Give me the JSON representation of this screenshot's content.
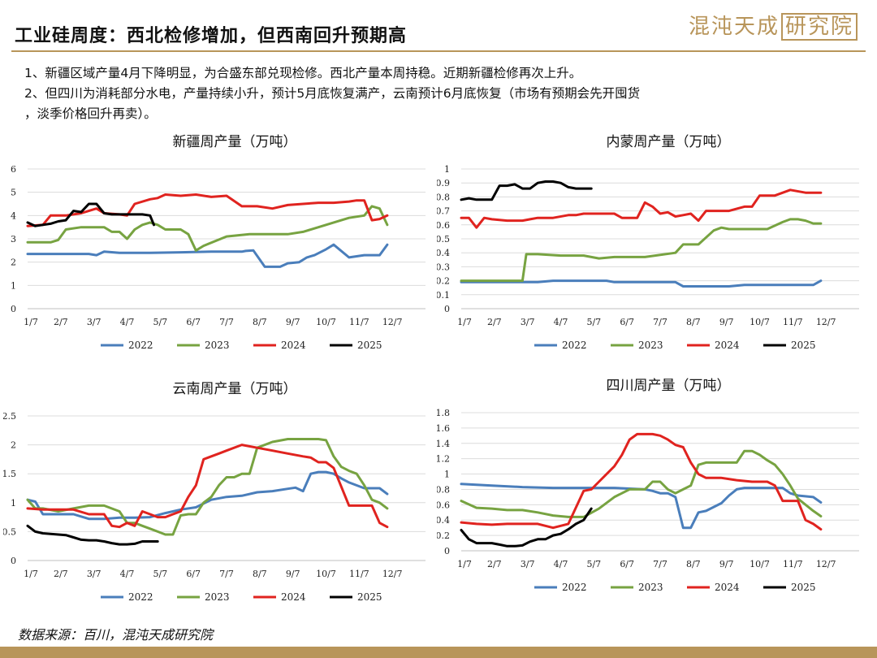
{
  "page": {
    "title": "工业硅周度：西北检修增加，但西南回升预期高",
    "brand_main": "混沌天成",
    "brand_box": "研究院",
    "notes": [
      "1、新疆区域产量4月下降明显，为合盛东部兑现检修。西北产量本周持稳。近期新疆检修再次上升。",
      "2、但四川为消耗部分水电，产量持续小升，预计5月底恢复满产，云南预计6月底恢复（市场有预期会先开囤货",
      "，淡季价格回升再卖）。"
    ],
    "source": "数据来源：百川，混沌天成研究院"
  },
  "colors": {
    "2022": "#4a7ebb",
    "2023": "#77a341",
    "2024": "#e0231f",
    "2025": "#000000",
    "accent": "#b8955a"
  },
  "chart_data": [
    {
      "id": "xinjiang",
      "type": "line",
      "title": "新疆周产量（万吨）",
      "ylim": [
        0,
        6
      ],
      "yticks": [
        "0",
        "1",
        "2",
        "3",
        "4",
        "5",
        "6"
      ],
      "xticks": [
        "1/7",
        "2/7",
        "3/7",
        "4/7",
        "5/7",
        "6/7",
        "7/7",
        "8/7",
        "9/7",
        "10/7",
        "11/7",
        "12/7"
      ],
      "xrange": [
        0,
        52
      ],
      "grid": true,
      "legend": "bottom",
      "series": [
        {
          "name": "2022",
          "x": [
            0,
            4,
            8,
            9,
            10,
            12,
            16,
            20,
            24,
            28,
            28.5,
            29.5,
            31,
            33,
            34,
            35.5,
            36.5,
            37.5,
            39,
            40,
            42,
            44,
            46,
            47
          ],
          "y": [
            2.35,
            2.35,
            2.35,
            2.3,
            2.45,
            2.4,
            2.4,
            2.42,
            2.45,
            2.45,
            2.48,
            2.5,
            1.8,
            1.8,
            1.95,
            2.0,
            2.2,
            2.3,
            2.55,
            2.75,
            2.2,
            2.3,
            2.3,
            2.75
          ]
        },
        {
          "name": "2023",
          "x": [
            0,
            3,
            4,
            5,
            7,
            10,
            11,
            12,
            13,
            14,
            15,
            16,
            17,
            18,
            19,
            20,
            21,
            22,
            23,
            26,
            29,
            31,
            34,
            36,
            38,
            40,
            42,
            44,
            45,
            46,
            47
          ],
          "y": [
            2.85,
            2.85,
            2.95,
            3.4,
            3.5,
            3.5,
            3.3,
            3.3,
            3.0,
            3.4,
            3.6,
            3.7,
            3.6,
            3.4,
            3.4,
            3.4,
            3.2,
            2.5,
            2.7,
            3.1,
            3.2,
            3.2,
            3.2,
            3.3,
            3.5,
            3.7,
            3.9,
            4.0,
            4.4,
            4.3,
            3.6
          ]
        },
        {
          "name": "2024",
          "x": [
            0,
            2,
            3,
            5,
            7,
            8,
            9,
            10,
            12,
            13,
            14,
            16,
            17,
            18,
            20,
            22,
            24,
            26,
            28,
            30,
            32,
            34,
            36,
            38,
            40,
            42,
            43,
            44,
            45,
            46,
            47
          ],
          "y": [
            3.55,
            3.6,
            4.0,
            4.0,
            4.1,
            4.2,
            4.3,
            4.1,
            4.05,
            4.0,
            4.5,
            4.7,
            4.75,
            4.9,
            4.85,
            4.9,
            4.8,
            4.85,
            4.4,
            4.4,
            4.3,
            4.45,
            4.5,
            4.55,
            4.55,
            4.6,
            4.65,
            4.65,
            3.8,
            3.85,
            4.0
          ]
        },
        {
          "name": "2025",
          "x": [
            0,
            1,
            2,
            3,
            4,
            5,
            6,
            7,
            8,
            9,
            10,
            11,
            12,
            13,
            14,
            15,
            16,
            16.5
          ],
          "y": [
            3.7,
            3.55,
            3.6,
            3.65,
            3.75,
            3.8,
            4.2,
            4.15,
            4.5,
            4.5,
            4.1,
            4.05,
            4.05,
            4.05,
            4.05,
            4.05,
            4.0,
            3.6
          ]
        }
      ]
    },
    {
      "id": "neimeng",
      "type": "line",
      "title": "内蒙周产量（万吨）",
      "ylim": [
        0,
        1
      ],
      "yticks": [
        "0",
        "0.1",
        "0.2",
        "0.3",
        "0.4",
        "0.5",
        "0.6",
        "0.7",
        "0.8",
        "0.9",
        "1"
      ],
      "xticks": [
        "1/7",
        "2/7",
        "3/7",
        "4/7",
        "5/7",
        "6/7",
        "7/7",
        "8/7",
        "9/7",
        "10/7",
        "11/7",
        "12/7"
      ],
      "xrange": [
        0,
        52
      ],
      "grid": true,
      "legend": "bottom",
      "series": [
        {
          "name": "2022",
          "x": [
            0,
            4,
            8,
            10,
            12,
            16,
            19,
            20,
            24,
            28,
            29,
            33,
            35,
            37,
            38,
            42,
            45,
            46,
            47
          ],
          "y": [
            0.19,
            0.19,
            0.19,
            0.19,
            0.2,
            0.2,
            0.2,
            0.19,
            0.19,
            0.19,
            0.16,
            0.16,
            0.16,
            0.17,
            0.17,
            0.17,
            0.17,
            0.17,
            0.2
          ]
        },
        {
          "name": "2023",
          "x": [
            0,
            4,
            8,
            8.5,
            10,
            13,
            16,
            18,
            20,
            24,
            28,
            29,
            31,
            33,
            34,
            35,
            38,
            40,
            42,
            43,
            44,
            45,
            46,
            47
          ],
          "y": [
            0.2,
            0.2,
            0.2,
            0.39,
            0.39,
            0.38,
            0.38,
            0.36,
            0.37,
            0.37,
            0.4,
            0.46,
            0.46,
            0.56,
            0.58,
            0.57,
            0.57,
            0.57,
            0.62,
            0.64,
            0.64,
            0.63,
            0.61,
            0.61
          ]
        },
        {
          "name": "2024",
          "x": [
            0,
            1,
            2,
            3,
            4,
            6,
            8,
            9,
            10,
            12,
            14,
            15,
            16,
            18,
            20,
            21,
            23,
            24,
            25,
            26,
            27,
            28,
            29,
            30,
            31,
            32,
            34,
            35,
            37,
            38,
            39,
            40,
            41,
            43,
            45,
            47
          ],
          "y": [
            0.65,
            0.65,
            0.58,
            0.65,
            0.64,
            0.63,
            0.63,
            0.64,
            0.65,
            0.65,
            0.67,
            0.67,
            0.68,
            0.68,
            0.68,
            0.65,
            0.65,
            0.76,
            0.73,
            0.68,
            0.69,
            0.66,
            0.67,
            0.68,
            0.63,
            0.7,
            0.7,
            0.7,
            0.73,
            0.73,
            0.81,
            0.81,
            0.81,
            0.85,
            0.83,
            0.83
          ]
        },
        {
          "name": "2025",
          "x": [
            0,
            1,
            2,
            3,
            4,
            5,
            6,
            7,
            8,
            9,
            10,
            11,
            12,
            13,
            14,
            15,
            16,
            17
          ],
          "y": [
            0.78,
            0.79,
            0.78,
            0.78,
            0.78,
            0.88,
            0.88,
            0.89,
            0.86,
            0.86,
            0.9,
            0.91,
            0.91,
            0.9,
            0.87,
            0.86,
            0.86,
            0.86
          ]
        }
      ]
    },
    {
      "id": "yunnan",
      "type": "line",
      "title": "云南周产量（万吨）",
      "ylim": [
        0,
        2.5
      ],
      "yticks": [
        "0",
        "0.5",
        "1",
        "1.5",
        "2",
        "2.5"
      ],
      "xticks": [
        "1/7",
        "2/7",
        "3/7",
        "4/7",
        "5/7",
        "6/7",
        "7/7",
        "8/7",
        "9/7",
        "10/7",
        "11/7",
        "12/7"
      ],
      "xrange": [
        0,
        52
      ],
      "grid": true,
      "legend": "bottom",
      "series": [
        {
          "name": "2022",
          "x": [
            0,
            1,
            2,
            4,
            6,
            8,
            10,
            12,
            14,
            16,
            18,
            20,
            22,
            24,
            26,
            28,
            30,
            32,
            34,
            35,
            36,
            37,
            38,
            39,
            40,
            41,
            42,
            44,
            46,
            47
          ],
          "y": [
            1.05,
            1.02,
            0.8,
            0.8,
            0.8,
            0.72,
            0.72,
            0.74,
            0.74,
            0.75,
            0.82,
            0.88,
            0.92,
            1.05,
            1.1,
            1.12,
            1.18,
            1.2,
            1.24,
            1.26,
            1.2,
            1.5,
            1.53,
            1.53,
            1.5,
            1.42,
            1.35,
            1.25,
            1.25,
            1.15
          ]
        },
        {
          "name": "2023",
          "x": [
            0,
            1,
            2,
            4,
            6,
            8,
            10,
            12,
            13,
            14,
            15,
            16,
            17,
            18,
            19,
            20,
            21,
            22,
            23,
            24,
            25,
            26,
            27,
            28,
            29,
            30,
            32,
            34,
            36,
            38,
            39,
            40,
            41,
            42,
            43,
            44,
            45,
            46,
            47
          ],
          "y": [
            1.05,
            0.9,
            0.9,
            0.85,
            0.9,
            0.95,
            0.95,
            0.85,
            0.65,
            0.65,
            0.6,
            0.55,
            0.5,
            0.45,
            0.45,
            0.78,
            0.8,
            0.8,
            1.0,
            1.1,
            1.3,
            1.44,
            1.44,
            1.5,
            1.5,
            1.95,
            2.05,
            2.1,
            2.1,
            2.1,
            2.08,
            1.8,
            1.62,
            1.55,
            1.5,
            1.3,
            1.05,
            1.0,
            0.9
          ]
        },
        {
          "name": "2024",
          "x": [
            0,
            2,
            4,
            6,
            8,
            10,
            11,
            12,
            13,
            14,
            15,
            16,
            17,
            18,
            19,
            20,
            21,
            22,
            23,
            24,
            25,
            26,
            28,
            30,
            32,
            34,
            36,
            37,
            38,
            39,
            40,
            42,
            44,
            45,
            46,
            47
          ],
          "y": [
            0.9,
            0.88,
            0.88,
            0.88,
            0.8,
            0.8,
            0.6,
            0.58,
            0.65,
            0.6,
            0.85,
            0.8,
            0.75,
            0.75,
            0.8,
            0.85,
            1.1,
            1.3,
            1.75,
            1.8,
            1.85,
            1.9,
            2.0,
            1.95,
            1.9,
            1.85,
            1.8,
            1.78,
            1.7,
            1.7,
            1.6,
            0.95,
            0.95,
            0.95,
            0.65,
            0.58
          ]
        },
        {
          "name": "2025",
          "x": [
            0,
            1,
            2,
            3,
            4,
            5,
            6,
            7,
            8,
            9,
            10,
            11,
            12,
            13,
            14,
            15,
            16,
            17
          ],
          "y": [
            0.6,
            0.5,
            0.47,
            0.46,
            0.45,
            0.44,
            0.4,
            0.36,
            0.35,
            0.35,
            0.33,
            0.3,
            0.28,
            0.28,
            0.29,
            0.33,
            0.33,
            0.33
          ]
        }
      ]
    },
    {
      "id": "sichuan",
      "type": "line",
      "title": "四川周产量（万吨）",
      "ylim": [
        0,
        1.8
      ],
      "yticks": [
        "0",
        "0.2",
        "0.4",
        "0.6",
        "0.8",
        "1",
        "1.2",
        "1.4",
        "1.6",
        "1.8"
      ],
      "xticks": [
        "1/7",
        "2/7",
        "3/7",
        "4/7",
        "5/7",
        "6/7",
        "7/7",
        "8/7",
        "9/7",
        "10/7",
        "11/7",
        "12/7"
      ],
      "xrange": [
        0,
        52
      ],
      "grid": true,
      "legend": "bottom",
      "series": [
        {
          "name": "2022",
          "x": [
            0,
            4,
            8,
            12,
            16,
            20,
            24,
            25,
            26,
            27,
            28,
            29,
            30,
            31,
            32,
            34,
            35,
            36,
            37,
            38,
            42,
            43,
            44,
            46,
            47
          ],
          "y": [
            0.87,
            0.85,
            0.83,
            0.82,
            0.82,
            0.82,
            0.8,
            0.78,
            0.75,
            0.75,
            0.7,
            0.3,
            0.3,
            0.5,
            0.52,
            0.62,
            0.72,
            0.8,
            0.82,
            0.82,
            0.82,
            0.75,
            0.72,
            0.7,
            0.63
          ]
        },
        {
          "name": "2023",
          "x": [
            0,
            2,
            4,
            6,
            8,
            10,
            12,
            14,
            16,
            18,
            20,
            22,
            24,
            25,
            26,
            27,
            28,
            29,
            30,
            31,
            32,
            34,
            36,
            37,
            38,
            39,
            40,
            41,
            42,
            43,
            44,
            46,
            47
          ],
          "y": [
            0.65,
            0.56,
            0.55,
            0.53,
            0.53,
            0.5,
            0.46,
            0.44,
            0.44,
            0.55,
            0.7,
            0.8,
            0.8,
            0.9,
            0.9,
            0.8,
            0.75,
            0.8,
            0.85,
            1.12,
            1.15,
            1.15,
            1.15,
            1.3,
            1.3,
            1.25,
            1.18,
            1.12,
            1.0,
            0.85,
            0.68,
            0.52,
            0.45
          ]
        },
        {
          "name": "2024",
          "x": [
            0,
            2,
            4,
            6,
            8,
            10,
            12,
            14,
            16,
            17,
            18,
            19,
            20,
            21,
            22,
            23,
            24,
            25,
            26,
            27,
            28,
            29,
            30,
            31,
            32,
            33,
            34,
            36,
            38,
            40,
            41,
            42,
            44,
            45,
            46,
            47
          ],
          "y": [
            0.37,
            0.35,
            0.34,
            0.35,
            0.35,
            0.35,
            0.3,
            0.35,
            0.78,
            0.8,
            0.9,
            1.0,
            1.1,
            1.25,
            1.45,
            1.52,
            1.52,
            1.52,
            1.5,
            1.45,
            1.38,
            1.35,
            1.15,
            1.0,
            0.95,
            0.95,
            0.95,
            0.92,
            0.9,
            0.9,
            0.85,
            0.65,
            0.65,
            0.4,
            0.35,
            0.28
          ]
        },
        {
          "name": "2025",
          "x": [
            0,
            1,
            2,
            3,
            4,
            5,
            6,
            7,
            8,
            9,
            10,
            11,
            12,
            13,
            14,
            15,
            16,
            17
          ],
          "y": [
            0.27,
            0.15,
            0.1,
            0.1,
            0.1,
            0.08,
            0.06,
            0.06,
            0.07,
            0.12,
            0.15,
            0.15,
            0.2,
            0.22,
            0.28,
            0.35,
            0.4,
            0.55
          ]
        }
      ]
    }
  ]
}
